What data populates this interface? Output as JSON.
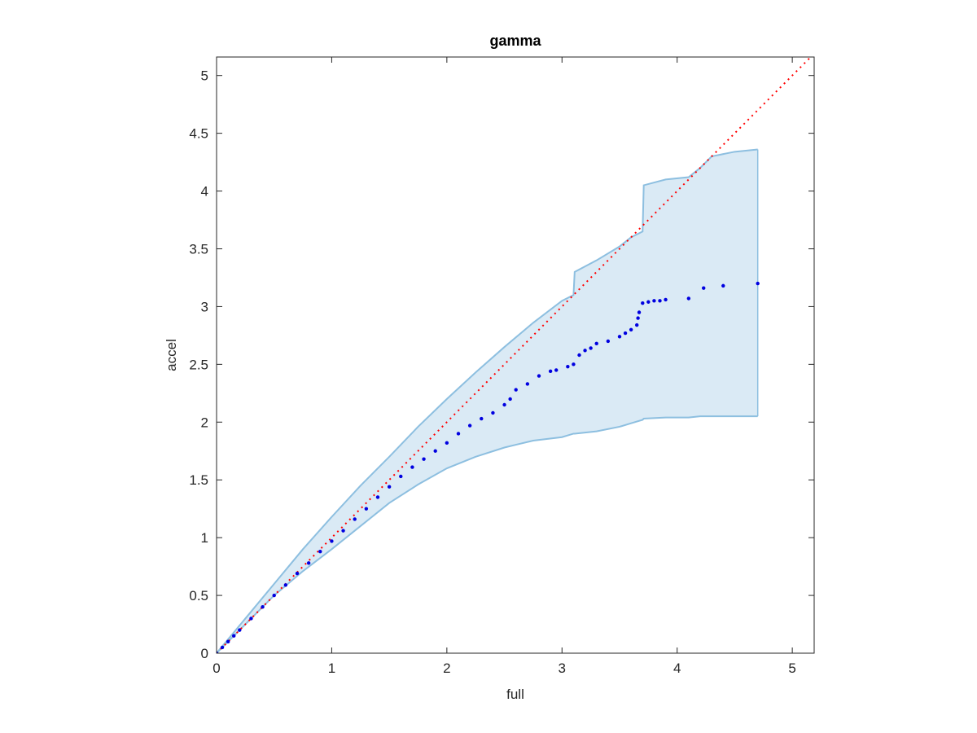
{
  "chart_data": {
    "type": "scatter",
    "title": "gamma",
    "x_label": "full",
    "y_label": "accel",
    "xlim": [
      0,
      5.19
    ],
    "ylim": [
      0,
      5.16
    ],
    "xticks": [
      0,
      1,
      2,
      3,
      4,
      5
    ],
    "yticks": [
      0,
      0.5,
      1,
      1.5,
      2,
      2.5,
      3,
      3.5,
      4,
      4.5,
      5
    ],
    "band": {
      "color": "#8dbfe0",
      "x": [
        0,
        0.25,
        0.5,
        0.75,
        1,
        1.25,
        1.5,
        1.75,
        2,
        2.25,
        2.5,
        2.75,
        3,
        3.1,
        3.11,
        3.3,
        3.5,
        3.6,
        3.7,
        3.71,
        3.9,
        4.1,
        4.2,
        4.3,
        4.5,
        4.7
      ],
      "upper": [
        0,
        0.3,
        0.6,
        0.9,
        1.18,
        1.45,
        1.7,
        1.96,
        2.2,
        2.43,
        2.65,
        2.86,
        3.05,
        3.1,
        3.3,
        3.4,
        3.52,
        3.6,
        3.65,
        4.05,
        4.1,
        4.12,
        4.2,
        4.3,
        4.34,
        4.36
      ],
      "lower": [
        0,
        0.25,
        0.5,
        0.71,
        0.9,
        1.1,
        1.3,
        1.46,
        1.6,
        1.7,
        1.78,
        1.84,
        1.87,
        1.9,
        1.9,
        1.92,
        1.96,
        1.99,
        2.02,
        2.03,
        2.04,
        2.04,
        2.05,
        2.05,
        2.05,
        2.05
      ]
    },
    "reference_line": {
      "color": "#ff0000",
      "x": [
        0,
        5.16
      ],
      "values": [
        0,
        5.16
      ]
    },
    "series": [
      {
        "color": "#0000e0",
        "x": [
          0,
          0.05,
          0.1,
          0.15,
          0.2,
          0.3,
          0.4,
          0.5,
          0.6,
          0.7,
          0.8,
          0.9,
          1,
          1.1,
          1.2,
          1.3,
          1.4,
          1.5,
          1.6,
          1.7,
          1.8,
          1.9,
          2,
          2.1,
          2.2,
          2.3,
          2.4,
          2.5,
          2.55,
          2.6,
          2.7,
          2.8,
          2.9,
          2.95,
          3.05,
          3.1,
          3.15,
          3.2,
          3.25,
          3.3,
          3.4,
          3.5,
          3.55,
          3.6,
          3.65,
          3.66,
          3.67,
          3.7,
          3.75,
          3.8,
          3.85,
          3.9,
          4.1,
          4.23,
          4.4,
          4.7
        ],
        "values": [
          0,
          0.05,
          0.1,
          0.15,
          0.2,
          0.3,
          0.4,
          0.5,
          0.59,
          0.69,
          0.78,
          0.88,
          0.97,
          1.06,
          1.16,
          1.25,
          1.35,
          1.44,
          1.53,
          1.61,
          1.68,
          1.75,
          1.82,
          1.9,
          1.97,
          2.03,
          2.08,
          2.15,
          2.2,
          2.28,
          2.33,
          2.4,
          2.44,
          2.45,
          2.48,
          2.5,
          2.58,
          2.62,
          2.64,
          2.68,
          2.7,
          2.74,
          2.77,
          2.8,
          2.84,
          2.9,
          2.95,
          3.03,
          3.04,
          3.05,
          3.05,
          3.06,
          3.07,
          3.16,
          3.18,
          3.2
        ]
      }
    ]
  }
}
